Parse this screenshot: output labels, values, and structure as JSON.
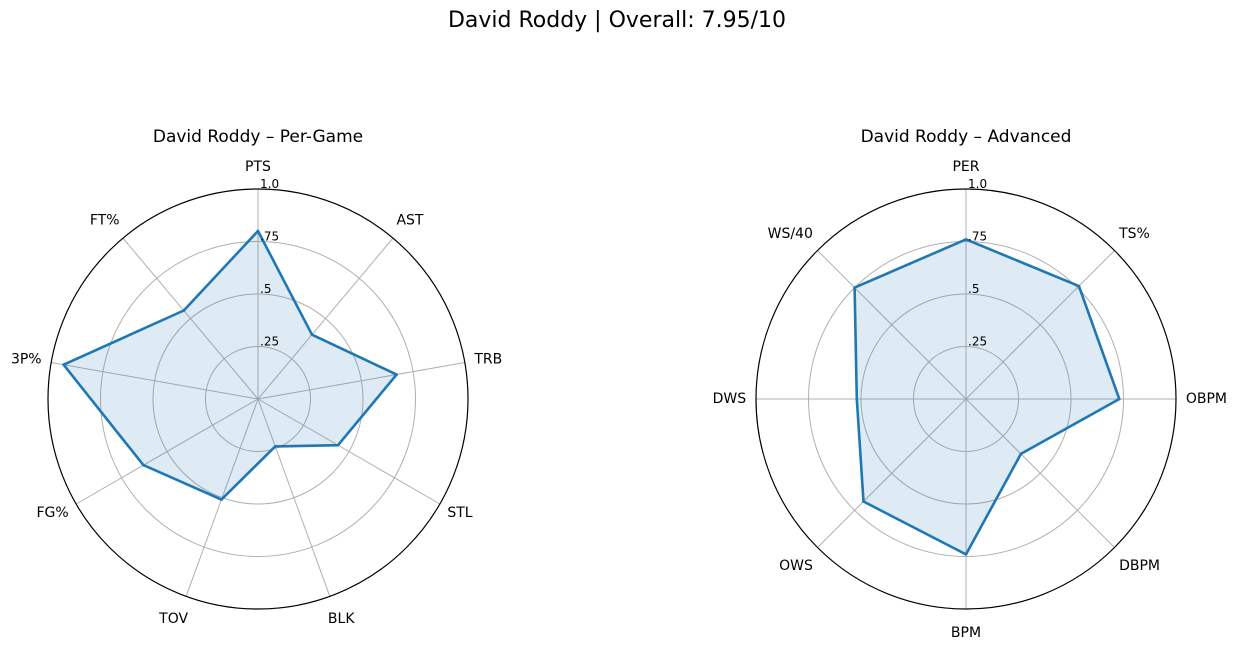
{
  "figure_title": "David Roddy | Overall: 7.95/10",
  "colors": {
    "line": "#1f77b4",
    "fill": "#1f77b4",
    "grid": "#b0b0b0",
    "frame": "#000000"
  },
  "chart_data": [
    {
      "type": "radar",
      "title": "David Roddy – Per-Game",
      "categories": [
        "PTS",
        "AST",
        "TRB",
        "STL",
        "BLK",
        "TOV",
        "FG%",
        "3P%",
        "FT%"
      ],
      "values": [
        0.8,
        0.4,
        0.67,
        0.44,
        0.24,
        0.51,
        0.63,
        0.94,
        0.55
      ],
      "rlim": [
        0,
        1
      ],
      "rticks": [
        0.25,
        0.5,
        0.75,
        1.0
      ],
      "rtick_labels": [
        ".25",
        ".5",
        ".75",
        "1.0"
      ],
      "grid": true,
      "line_color": "#1f77b4",
      "fill_alpha": 0.15
    },
    {
      "type": "radar",
      "title": "David Roddy – Advanced",
      "categories": [
        "PER",
        "TS%",
        "OBPM",
        "DBPM",
        "BPM",
        "OWS",
        "DWS",
        "WS/40"
      ],
      "values": [
        0.76,
        0.76,
        0.73,
        0.37,
        0.74,
        0.69,
        0.52,
        0.75
      ],
      "rlim": [
        0,
        1
      ],
      "rticks": [
        0.25,
        0.5,
        0.75,
        1.0
      ],
      "rtick_labels": [
        ".25",
        ".5",
        ".75",
        "1.0"
      ],
      "grid": true,
      "line_color": "#1f77b4",
      "fill_alpha": 0.15
    }
  ]
}
